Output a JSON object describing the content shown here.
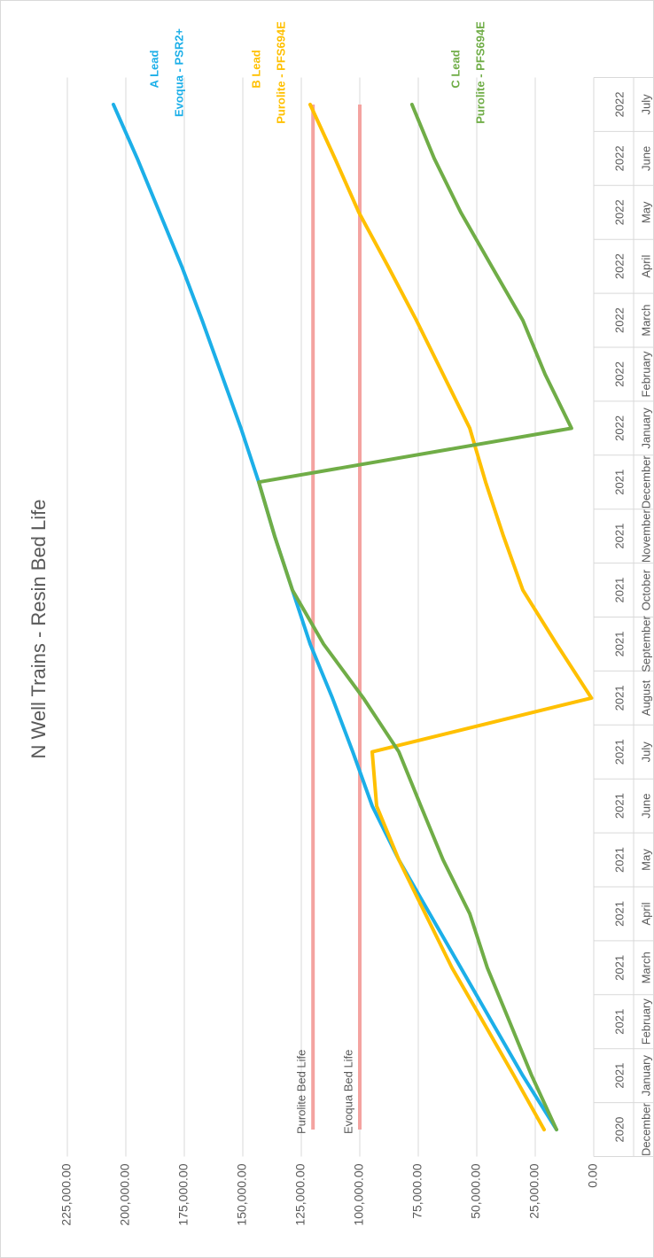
{
  "chart_data": {
    "type": "line",
    "title": "N Well Trains - Resin Bed Life",
    "categories": [
      "December",
      "January",
      "February",
      "March",
      "April",
      "May",
      "June",
      "July",
      "August",
      "September",
      "October",
      "November",
      "December",
      "January",
      "February",
      "March",
      "April",
      "May",
      "June",
      "July"
    ],
    "category_years": [
      "2020",
      "2021",
      "2021",
      "2021",
      "2021",
      "2021",
      "2021",
      "2021",
      "2021",
      "2021",
      "2021",
      "2021",
      "2021",
      "2022",
      "2022",
      "2022",
      "2022",
      "2022",
      "2022",
      "2022"
    ],
    "series": [
      {
        "name": "A Lead",
        "product": "Evoqua - PSR2+",
        "color": "#1cafe8",
        "values": [
          15900,
          30300,
          43600,
          56800,
          70100,
          83300,
          94700,
          103000,
          111700,
          121200,
          128800,
          136400,
          143200,
          150800,
          159100,
          167400,
          176100,
          185600,
          195100,
          205300
        ]
      },
      {
        "name": "B Lead",
        "product": "Purolite - PFS694E",
        "color": "#ffc000",
        "values": [
          21200,
          34100,
          47300,
          60600,
          72000,
          83300,
          92800,
          94700,
          1000,
          15900,
          30300,
          38600,
          46200,
          53000,
          64400,
          75800,
          87900,
          100400,
          110600,
          121200
        ]
      },
      {
        "name": "C Lead",
        "product": "Purolite - PFS694E",
        "color": "#70ad47",
        "values": [
          15900,
          26500,
          36000,
          45500,
          53000,
          64400,
          73900,
          83300,
          98500,
          115500,
          128800,
          136400,
          143200,
          9500,
          20800,
          30300,
          43600,
          56800,
          68200,
          77700
        ]
      }
    ],
    "reference_lines": [
      {
        "label": "Purolite Bed Life",
        "value": 120000,
        "color": "#f4a3a0"
      },
      {
        "label": "Evoqua Bed Life",
        "value": 100000,
        "color": "#f4a3a0"
      }
    ],
    "ylim": [
      0,
      225000
    ],
    "yticks": [
      {
        "value": 0,
        "label": "0.00"
      },
      {
        "value": 25000,
        "label": "25,000.00"
      },
      {
        "value": 50000,
        "label": "50,000.00"
      },
      {
        "value": 75000,
        "label": "75,000.00"
      },
      {
        "value": 100000,
        "label": "100,000.00"
      },
      {
        "value": 125000,
        "label": "125,000.00"
      },
      {
        "value": 150000,
        "label": "150,000.00"
      },
      {
        "value": 175000,
        "label": "175,000.00"
      },
      {
        "value": 200000,
        "label": "200,000.00"
      },
      {
        "value": 225000,
        "label": "225,000.00"
      }
    ],
    "grid": true
  }
}
